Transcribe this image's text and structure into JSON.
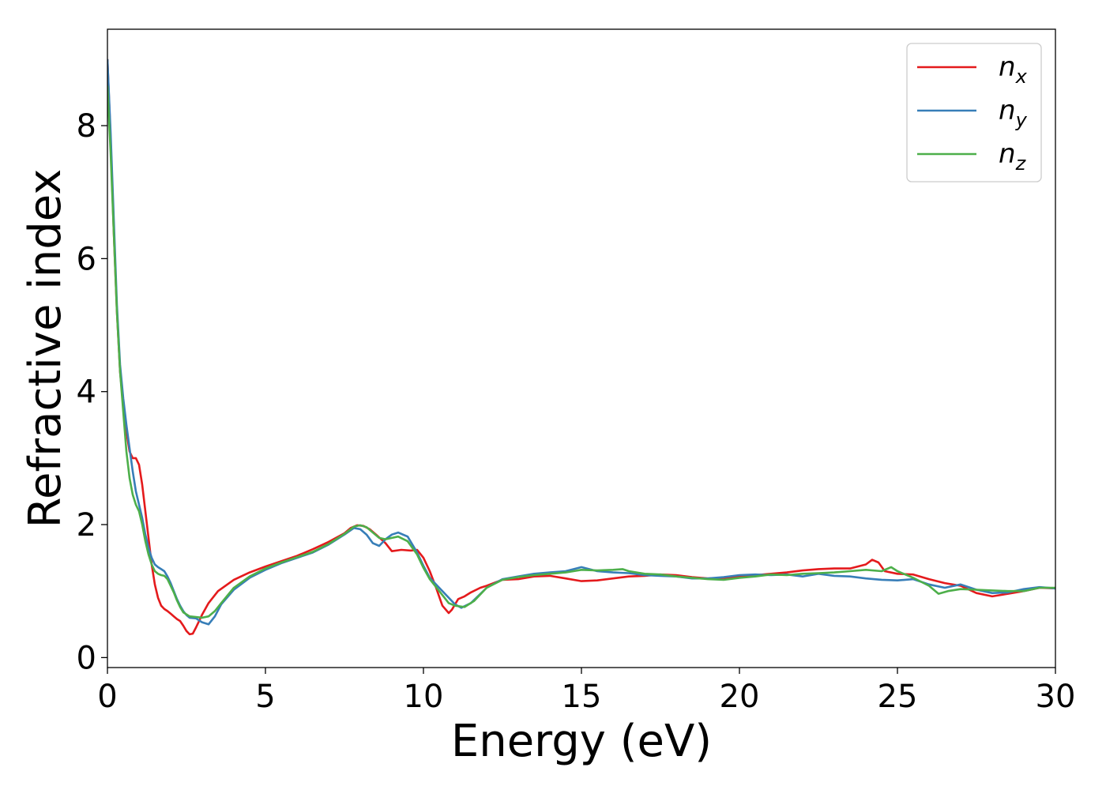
{
  "chart_data": {
    "type": "line",
    "title": "",
    "xlabel": "Energy (eV)",
    "ylabel": "Refractive index",
    "xlim": [
      0,
      30
    ],
    "ylim": [
      -0.15,
      9.45
    ],
    "x_ticks": [
      0,
      5,
      10,
      15,
      20,
      25,
      30
    ],
    "y_ticks": [
      0,
      2,
      4,
      6,
      8
    ],
    "grid": false,
    "legend_position": "top-right",
    "series": [
      {
        "name": "n",
        "subscript": "x",
        "color": "#e41a1c",
        "points": [
          [
            0,
            9.0
          ],
          [
            0.1,
            7.8
          ],
          [
            0.2,
            6.4
          ],
          [
            0.3,
            5.2
          ],
          [
            0.4,
            4.3
          ],
          [
            0.5,
            3.8
          ],
          [
            0.6,
            3.4
          ],
          [
            0.7,
            3.1
          ],
          [
            0.8,
            3.0
          ],
          [
            0.9,
            3.0
          ],
          [
            1.0,
            2.9
          ],
          [
            1.1,
            2.6
          ],
          [
            1.2,
            2.2
          ],
          [
            1.3,
            1.8
          ],
          [
            1.4,
            1.4
          ],
          [
            1.5,
            1.1
          ],
          [
            1.6,
            0.9
          ],
          [
            1.7,
            0.78
          ],
          [
            1.8,
            0.73
          ],
          [
            1.9,
            0.7
          ],
          [
            2.0,
            0.66
          ],
          [
            2.1,
            0.62
          ],
          [
            2.2,
            0.58
          ],
          [
            2.3,
            0.55
          ],
          [
            2.4,
            0.48
          ],
          [
            2.5,
            0.4
          ],
          [
            2.6,
            0.35
          ],
          [
            2.7,
            0.36
          ],
          [
            2.8,
            0.45
          ],
          [
            3.0,
            0.65
          ],
          [
            3.2,
            0.82
          ],
          [
            3.5,
            1.0
          ],
          [
            4.0,
            1.17
          ],
          [
            4.5,
            1.28
          ],
          [
            5.0,
            1.37
          ],
          [
            5.5,
            1.45
          ],
          [
            6.0,
            1.53
          ],
          [
            6.5,
            1.63
          ],
          [
            7.0,
            1.74
          ],
          [
            7.5,
            1.87
          ],
          [
            7.7,
            1.95
          ],
          [
            7.9,
            1.99
          ],
          [
            8.1,
            1.98
          ],
          [
            8.3,
            1.93
          ],
          [
            8.5,
            1.85
          ],
          [
            8.8,
            1.72
          ],
          [
            9.0,
            1.6
          ],
          [
            9.3,
            1.62
          ],
          [
            9.6,
            1.61
          ],
          [
            9.8,
            1.62
          ],
          [
            10.0,
            1.5
          ],
          [
            10.2,
            1.3
          ],
          [
            10.4,
            1.05
          ],
          [
            10.6,
            0.78
          ],
          [
            10.8,
            0.67
          ],
          [
            10.9,
            0.72
          ],
          [
            11.1,
            0.88
          ],
          [
            11.3,
            0.92
          ],
          [
            11.5,
            0.98
          ],
          [
            11.8,
            1.05
          ],
          [
            12.0,
            1.08
          ],
          [
            12.5,
            1.17
          ],
          [
            13.0,
            1.18
          ],
          [
            13.5,
            1.22
          ],
          [
            14.0,
            1.23
          ],
          [
            14.5,
            1.19
          ],
          [
            15.0,
            1.15
          ],
          [
            15.5,
            1.16
          ],
          [
            16.0,
            1.19
          ],
          [
            16.5,
            1.22
          ],
          [
            17.0,
            1.23
          ],
          [
            17.5,
            1.25
          ],
          [
            18.0,
            1.24
          ],
          [
            18.5,
            1.21
          ],
          [
            19.0,
            1.19
          ],
          [
            19.5,
            1.2
          ],
          [
            20.0,
            1.22
          ],
          [
            20.5,
            1.24
          ],
          [
            21.0,
            1.26
          ],
          [
            21.5,
            1.28
          ],
          [
            22.0,
            1.31
          ],
          [
            22.5,
            1.33
          ],
          [
            23.0,
            1.34
          ],
          [
            23.5,
            1.34
          ],
          [
            24.0,
            1.4
          ],
          [
            24.2,
            1.47
          ],
          [
            24.4,
            1.43
          ],
          [
            24.6,
            1.3
          ],
          [
            25.0,
            1.26
          ],
          [
            25.5,
            1.25
          ],
          [
            26.0,
            1.18
          ],
          [
            26.5,
            1.12
          ],
          [
            27.0,
            1.08
          ],
          [
            27.5,
            0.97
          ],
          [
            28.0,
            0.92
          ],
          [
            28.5,
            0.96
          ],
          [
            29.0,
            1.0
          ],
          [
            29.5,
            1.05
          ],
          [
            30.0,
            1.04
          ]
        ]
      },
      {
        "name": "n",
        "subscript": "y",
        "color": "#377eb8",
        "points": [
          [
            0,
            9.0
          ],
          [
            0.1,
            7.9
          ],
          [
            0.2,
            6.6
          ],
          [
            0.3,
            5.3
          ],
          [
            0.4,
            4.4
          ],
          [
            0.5,
            3.9
          ],
          [
            0.6,
            3.5
          ],
          [
            0.7,
            3.15
          ],
          [
            0.8,
            2.8
          ],
          [
            0.9,
            2.5
          ],
          [
            1.0,
            2.3
          ],
          [
            1.1,
            2.1
          ],
          [
            1.2,
            1.85
          ],
          [
            1.3,
            1.65
          ],
          [
            1.4,
            1.5
          ],
          [
            1.5,
            1.4
          ],
          [
            1.6,
            1.36
          ],
          [
            1.7,
            1.33
          ],
          [
            1.8,
            1.3
          ],
          [
            1.9,
            1.22
          ],
          [
            2.0,
            1.12
          ],
          [
            2.1,
            1.0
          ],
          [
            2.2,
            0.88
          ],
          [
            2.3,
            0.78
          ],
          [
            2.4,
            0.7
          ],
          [
            2.5,
            0.64
          ],
          [
            2.6,
            0.6
          ],
          [
            2.8,
            0.59
          ],
          [
            3.0,
            0.53
          ],
          [
            3.2,
            0.5
          ],
          [
            3.4,
            0.62
          ],
          [
            3.6,
            0.8
          ],
          [
            4.0,
            1.02
          ],
          [
            4.5,
            1.2
          ],
          [
            5.0,
            1.32
          ],
          [
            5.5,
            1.42
          ],
          [
            6.0,
            1.5
          ],
          [
            6.5,
            1.58
          ],
          [
            7.0,
            1.7
          ],
          [
            7.5,
            1.85
          ],
          [
            7.8,
            1.95
          ],
          [
            8.0,
            1.93
          ],
          [
            8.2,
            1.85
          ],
          [
            8.4,
            1.72
          ],
          [
            8.6,
            1.68
          ],
          [
            8.8,
            1.78
          ],
          [
            9.0,
            1.85
          ],
          [
            9.2,
            1.88
          ],
          [
            9.5,
            1.82
          ],
          [
            9.8,
            1.58
          ],
          [
            10.0,
            1.38
          ],
          [
            10.2,
            1.2
          ],
          [
            10.5,
            1.05
          ],
          [
            10.8,
            0.9
          ],
          [
            11.0,
            0.8
          ],
          [
            11.2,
            0.75
          ],
          [
            11.5,
            0.82
          ],
          [
            12.0,
            1.05
          ],
          [
            12.5,
            1.18
          ],
          [
            13.0,
            1.22
          ],
          [
            13.5,
            1.26
          ],
          [
            14.0,
            1.28
          ],
          [
            14.5,
            1.3
          ],
          [
            15.0,
            1.36
          ],
          [
            15.5,
            1.3
          ],
          [
            16.0,
            1.28
          ],
          [
            16.5,
            1.27
          ],
          [
            17.0,
            1.24
          ],
          [
            17.5,
            1.23
          ],
          [
            18.0,
            1.22
          ],
          [
            18.5,
            1.19
          ],
          [
            19.0,
            1.19
          ],
          [
            19.5,
            1.21
          ],
          [
            20.0,
            1.24
          ],
          [
            20.5,
            1.25
          ],
          [
            21.0,
            1.24
          ],
          [
            21.5,
            1.25
          ],
          [
            22.0,
            1.22
          ],
          [
            22.5,
            1.26
          ],
          [
            23.0,
            1.23
          ],
          [
            23.5,
            1.22
          ],
          [
            24.0,
            1.19
          ],
          [
            24.5,
            1.17
          ],
          [
            25.0,
            1.16
          ],
          [
            25.5,
            1.18
          ],
          [
            26.0,
            1.1
          ],
          [
            26.5,
            1.05
          ],
          [
            27.0,
            1.1
          ],
          [
            27.5,
            1.02
          ],
          [
            28.0,
            0.97
          ],
          [
            28.5,
            0.98
          ],
          [
            29.0,
            1.03
          ],
          [
            29.5,
            1.06
          ],
          [
            30.0,
            1.04
          ]
        ]
      },
      {
        "name": "n",
        "subscript": "z",
        "color": "#4daf4a",
        "points": [
          [
            0,
            8.6
          ],
          [
            0.1,
            7.6
          ],
          [
            0.2,
            6.4
          ],
          [
            0.3,
            5.2
          ],
          [
            0.4,
            4.3
          ],
          [
            0.5,
            3.7
          ],
          [
            0.6,
            3.1
          ],
          [
            0.7,
            2.7
          ],
          [
            0.8,
            2.45
          ],
          [
            0.9,
            2.3
          ],
          [
            1.0,
            2.2
          ],
          [
            1.1,
            2.0
          ],
          [
            1.2,
            1.75
          ],
          [
            1.3,
            1.55
          ],
          [
            1.4,
            1.4
          ],
          [
            1.5,
            1.3
          ],
          [
            1.6,
            1.26
          ],
          [
            1.7,
            1.24
          ],
          [
            1.8,
            1.23
          ],
          [
            1.9,
            1.18
          ],
          [
            2.0,
            1.08
          ],
          [
            2.1,
            0.98
          ],
          [
            2.2,
            0.86
          ],
          [
            2.3,
            0.76
          ],
          [
            2.4,
            0.68
          ],
          [
            2.6,
            0.62
          ],
          [
            2.8,
            0.61
          ],
          [
            3.0,
            0.6
          ],
          [
            3.2,
            0.62
          ],
          [
            3.4,
            0.7
          ],
          [
            3.6,
            0.82
          ],
          [
            4.0,
            1.05
          ],
          [
            4.5,
            1.22
          ],
          [
            5.0,
            1.34
          ],
          [
            5.5,
            1.43
          ],
          [
            6.0,
            1.51
          ],
          [
            6.5,
            1.59
          ],
          [
            7.0,
            1.71
          ],
          [
            7.5,
            1.86
          ],
          [
            7.8,
            1.97
          ],
          [
            8.0,
            1.99
          ],
          [
            8.2,
            1.96
          ],
          [
            8.4,
            1.88
          ],
          [
            8.6,
            1.8
          ],
          [
            8.8,
            1.78
          ],
          [
            9.0,
            1.8
          ],
          [
            9.2,
            1.82
          ],
          [
            9.5,
            1.75
          ],
          [
            9.8,
            1.55
          ],
          [
            10.0,
            1.35
          ],
          [
            10.2,
            1.18
          ],
          [
            10.5,
            1.0
          ],
          [
            10.8,
            0.82
          ],
          [
            11.0,
            0.78
          ],
          [
            11.3,
            0.76
          ],
          [
            11.6,
            0.85
          ],
          [
            12.0,
            1.05
          ],
          [
            12.5,
            1.17
          ],
          [
            13.0,
            1.21
          ],
          [
            13.5,
            1.24
          ],
          [
            14.0,
            1.26
          ],
          [
            14.5,
            1.28
          ],
          [
            15.0,
            1.32
          ],
          [
            15.5,
            1.31
          ],
          [
            16.0,
            1.32
          ],
          [
            16.3,
            1.33
          ],
          [
            16.5,
            1.3
          ],
          [
            17.0,
            1.26
          ],
          [
            17.5,
            1.25
          ],
          [
            18.0,
            1.22
          ],
          [
            18.5,
            1.2
          ],
          [
            19.0,
            1.18
          ],
          [
            19.5,
            1.17
          ],
          [
            20.0,
            1.2
          ],
          [
            20.5,
            1.22
          ],
          [
            21.0,
            1.25
          ],
          [
            21.5,
            1.24
          ],
          [
            22.0,
            1.26
          ],
          [
            22.5,
            1.27
          ],
          [
            23.0,
            1.28
          ],
          [
            23.5,
            1.3
          ],
          [
            24.0,
            1.32
          ],
          [
            24.5,
            1.3
          ],
          [
            24.8,
            1.36
          ],
          [
            25.0,
            1.3
          ],
          [
            25.5,
            1.2
          ],
          [
            26.0,
            1.08
          ],
          [
            26.3,
            0.96
          ],
          [
            26.6,
            1.0
          ],
          [
            27.0,
            1.03
          ],
          [
            27.5,
            1.02
          ],
          [
            28.0,
            1.01
          ],
          [
            28.5,
            1.0
          ],
          [
            29.0,
            1.0
          ],
          [
            29.5,
            1.05
          ],
          [
            30.0,
            1.05
          ]
        ]
      }
    ]
  }
}
